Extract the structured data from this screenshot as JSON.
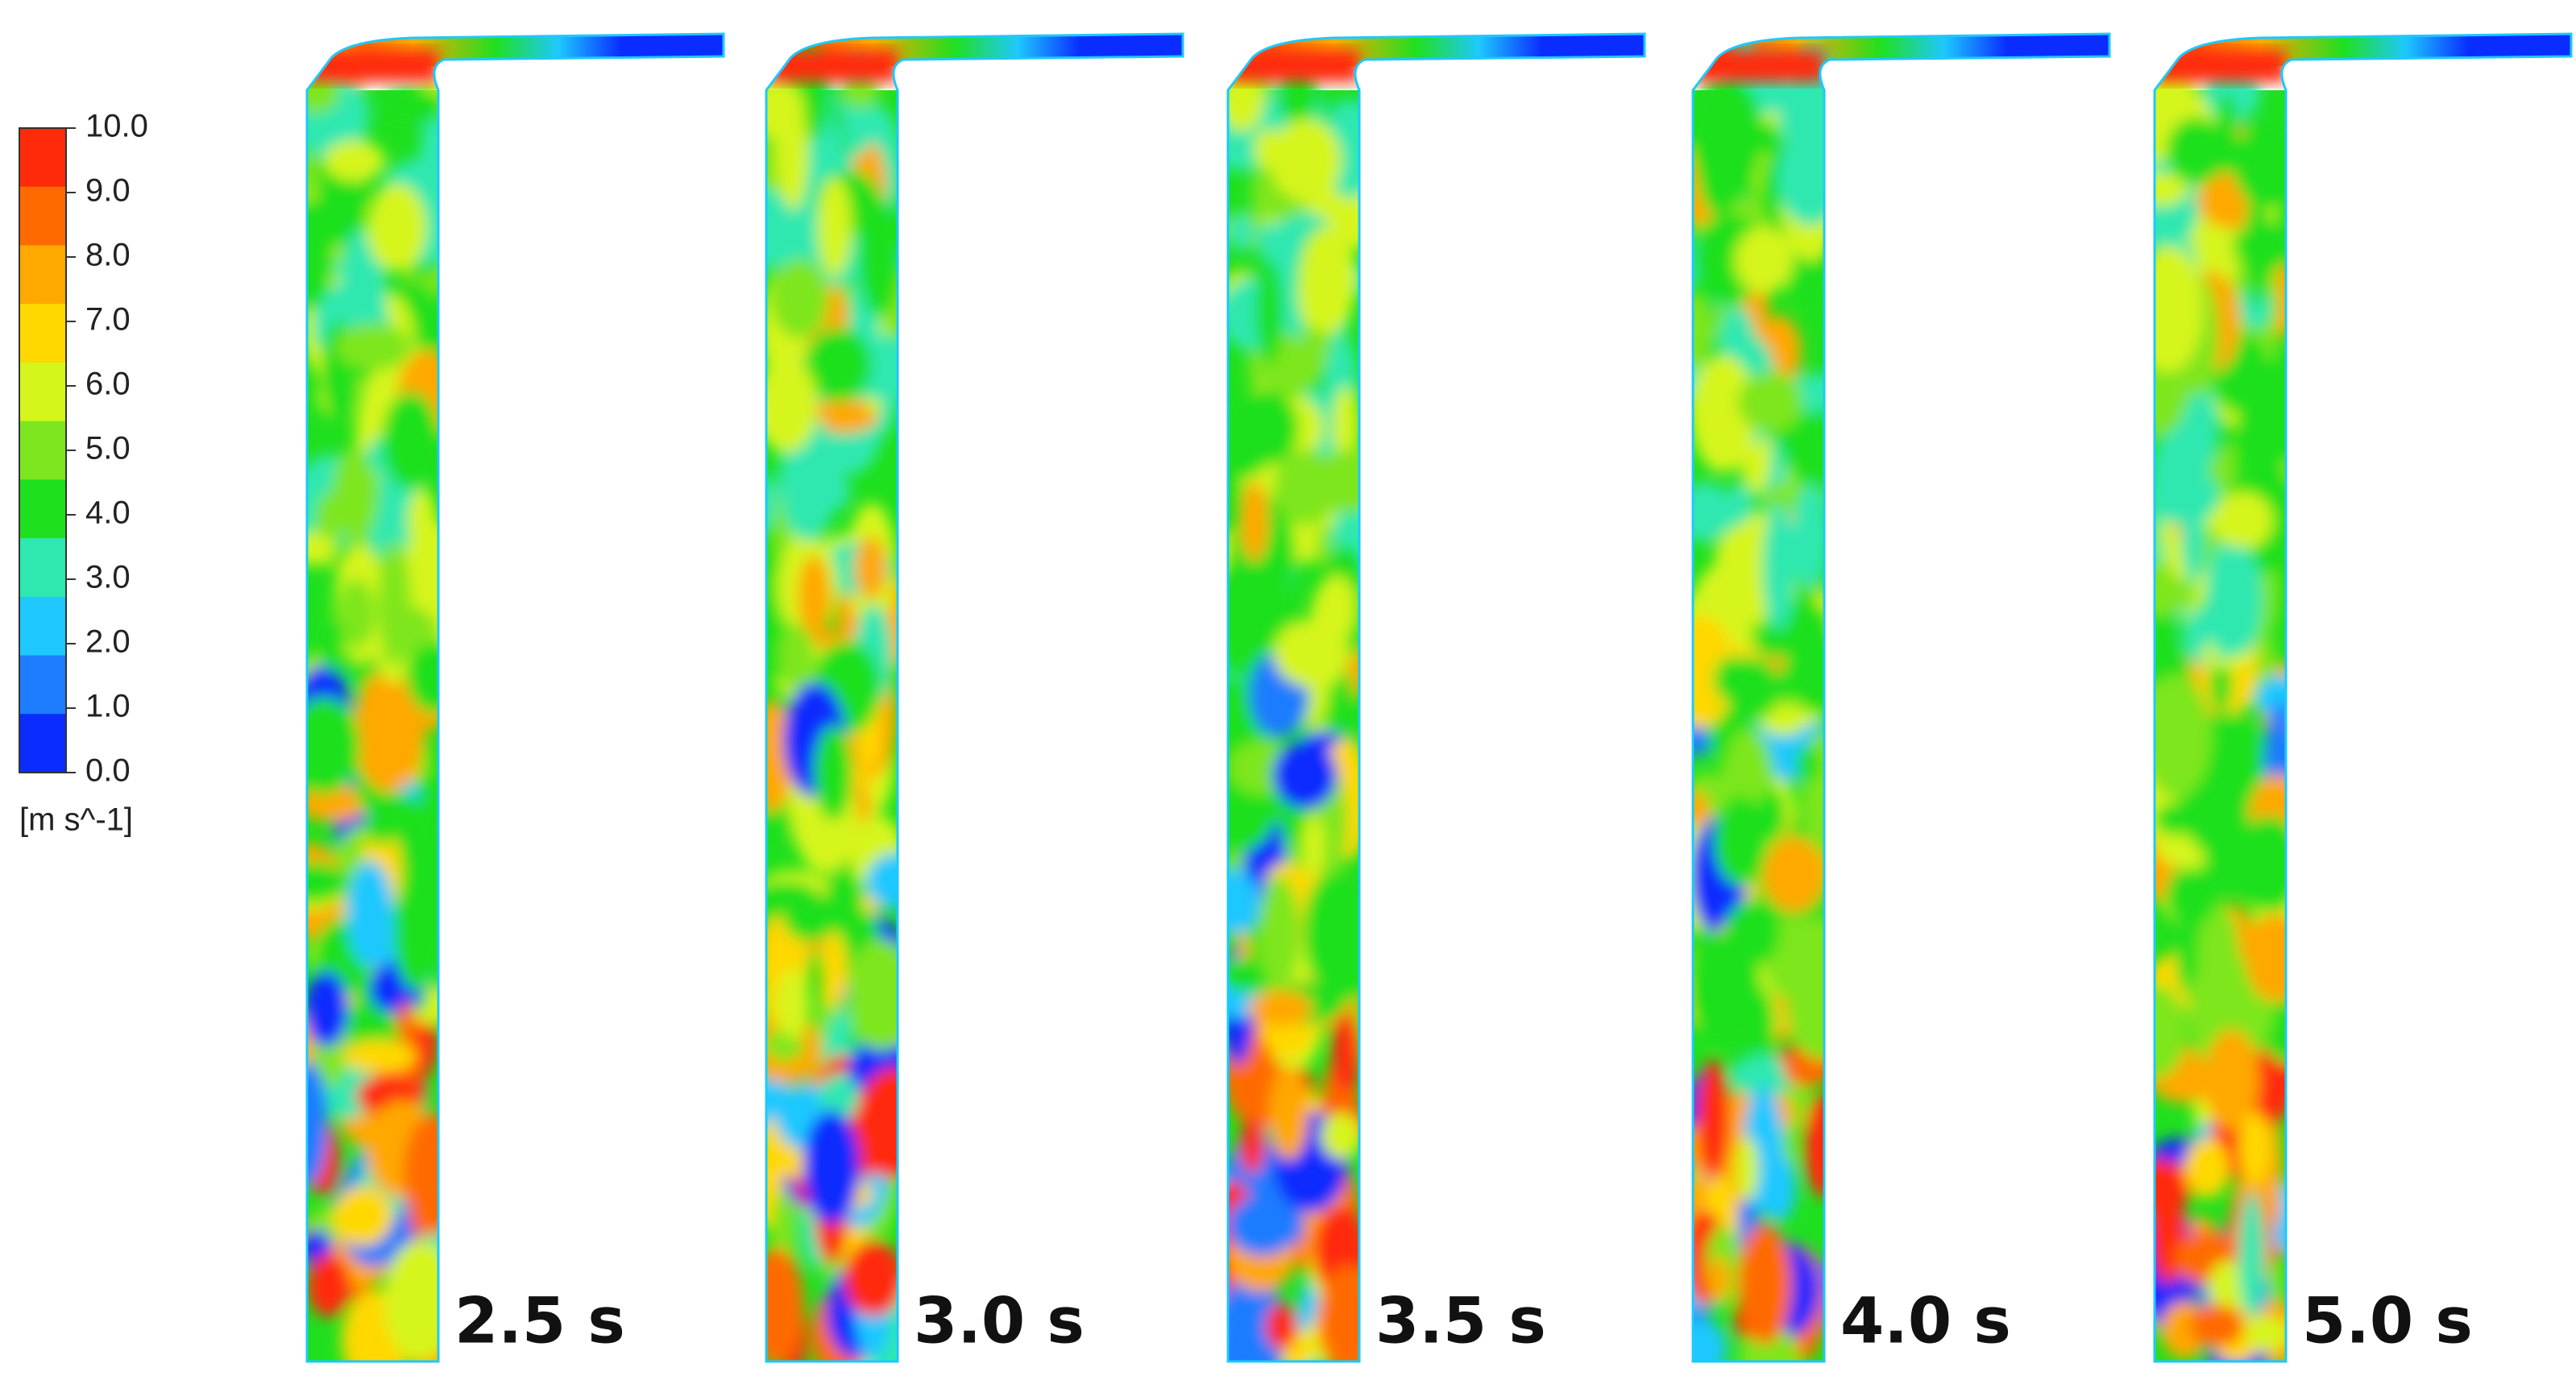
{
  "legend": {
    "ticks": [
      "10.0",
      "9.0",
      "8.0",
      "7.0",
      "6.0",
      "5.0",
      "4.0",
      "3.0",
      "2.0",
      "1.0",
      "0.0"
    ],
    "unit": "[m s^-1]",
    "colors": [
      "#ff2a0a",
      "#ff6a00",
      "#ffa800",
      "#ffd800",
      "#d6f51a",
      "#7ee61e",
      "#1fe01f",
      "#2ee8b0",
      "#1ec8ff",
      "#1e7cff",
      "#0a2cff"
    ]
  },
  "panels": [
    {
      "label": "2.5 s"
    },
    {
      "label": "3.0 s"
    },
    {
      "label": "3.5 s"
    },
    {
      "label": "4.0 s"
    },
    {
      "label": "5.0 s"
    }
  ]
}
